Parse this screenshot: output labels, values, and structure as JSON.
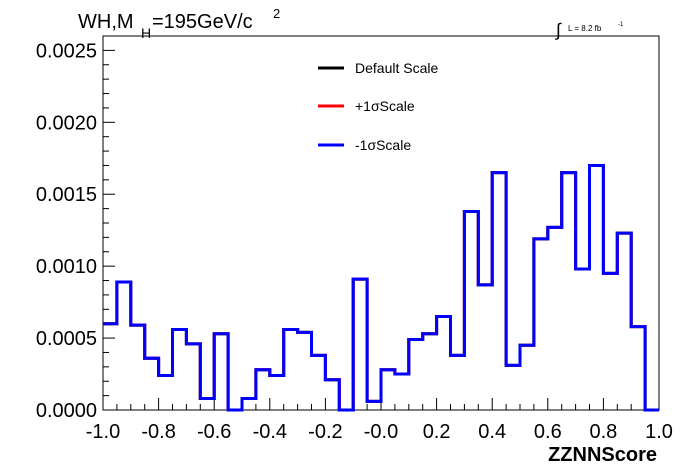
{
  "chart_data": {
    "type": "line",
    "title_main": "WH,M",
    "title_sub": "H",
    "title_rest": "=195GeV/c",
    "title_sup": "2",
    "lumi_prefix": "∫",
    "lumi_label": "L = 8.2 fb",
    "lumi_sup": "-1",
    "xlabel": "ZZNNScore",
    "xlim": [
      -1.0,
      1.0
    ],
    "ylim": [
      0.0,
      0.0026
    ],
    "x_ticks": [
      "-1.0",
      "-0.8",
      "-0.6",
      "-0.4",
      "-0.2",
      "-0.0",
      "0.2",
      "0.4",
      "0.6",
      "0.8",
      "1.0"
    ],
    "x_tick_values": [
      -1.0,
      -0.8,
      -0.6,
      -0.4,
      -0.2,
      0.0,
      0.2,
      0.4,
      0.6,
      0.8,
      1.0
    ],
    "y_ticks": [
      "0.0000",
      "0.0005",
      "0.0010",
      "0.0015",
      "0.0020",
      "0.0025"
    ],
    "y_tick_values": [
      0.0,
      0.0005,
      0.001,
      0.0015,
      0.002,
      0.0025
    ],
    "bin_edges": [
      -1.0,
      -0.95,
      -0.9,
      -0.85,
      -0.8,
      -0.75,
      -0.7,
      -0.65,
      -0.6,
      -0.55,
      -0.5,
      -0.45,
      -0.4,
      -0.35,
      -0.3,
      -0.25,
      -0.2,
      -0.15,
      -0.1,
      -0.05,
      0.0,
      0.05,
      0.1,
      0.15,
      0.2,
      0.25,
      0.3,
      0.35,
      0.4,
      0.45,
      0.5,
      0.55,
      0.6,
      0.65,
      0.7,
      0.75,
      0.8,
      0.85,
      0.9,
      0.95,
      1.0
    ],
    "series": [
      {
        "name": "Default Scale",
        "color": "#000000",
        "values": [
          0.0006,
          0.00089,
          0.00059,
          0.00036,
          0.00024,
          0.00056,
          0.00046,
          8e-05,
          0.00053,
          0.0,
          8e-05,
          0.00028,
          0.00024,
          0.00056,
          0.00054,
          0.00038,
          0.00021,
          0.0,
          0.00091,
          6e-05,
          0.00028,
          0.00025,
          0.00049,
          0.00053,
          0.00065,
          0.00038,
          0.00138,
          0.00087,
          0.00165,
          0.00031,
          0.00045,
          0.00119,
          0.00127,
          0.00165,
          0.00098,
          0.0017,
          0.00095,
          0.00123,
          0.00058,
          0.0
        ]
      },
      {
        "name": "+1σScale",
        "color": "#ff0000",
        "values": [
          0.0006,
          0.00089,
          0.00059,
          0.00036,
          0.00024,
          0.00056,
          0.00046,
          8e-05,
          0.00053,
          0.0,
          8e-05,
          0.00028,
          0.00024,
          0.00056,
          0.00054,
          0.00038,
          0.00021,
          0.0,
          0.00091,
          6e-05,
          0.00028,
          0.00025,
          0.00049,
          0.00053,
          0.00065,
          0.00038,
          0.00138,
          0.00087,
          0.00165,
          0.00031,
          0.00045,
          0.00119,
          0.00127,
          0.00165,
          0.00098,
          0.0017,
          0.00095,
          0.00123,
          0.00058,
          0.0
        ]
      },
      {
        "name": "-1σScale",
        "color": "#0000ff",
        "values": [
          0.0006,
          0.00089,
          0.00059,
          0.00036,
          0.00024,
          0.00056,
          0.00046,
          8e-05,
          0.00053,
          0.0,
          8e-05,
          0.00028,
          0.00024,
          0.00056,
          0.00054,
          0.00038,
          0.00021,
          0.0,
          0.00091,
          6e-05,
          0.00028,
          0.00025,
          0.00049,
          0.00053,
          0.00065,
          0.00038,
          0.00138,
          0.00087,
          0.00165,
          0.00031,
          0.00045,
          0.00119,
          0.00127,
          0.00165,
          0.00098,
          0.0017,
          0.00095,
          0.00123,
          0.00058,
          0.0
        ]
      }
    ],
    "legend_placement": "top-center",
    "grid": false
  }
}
